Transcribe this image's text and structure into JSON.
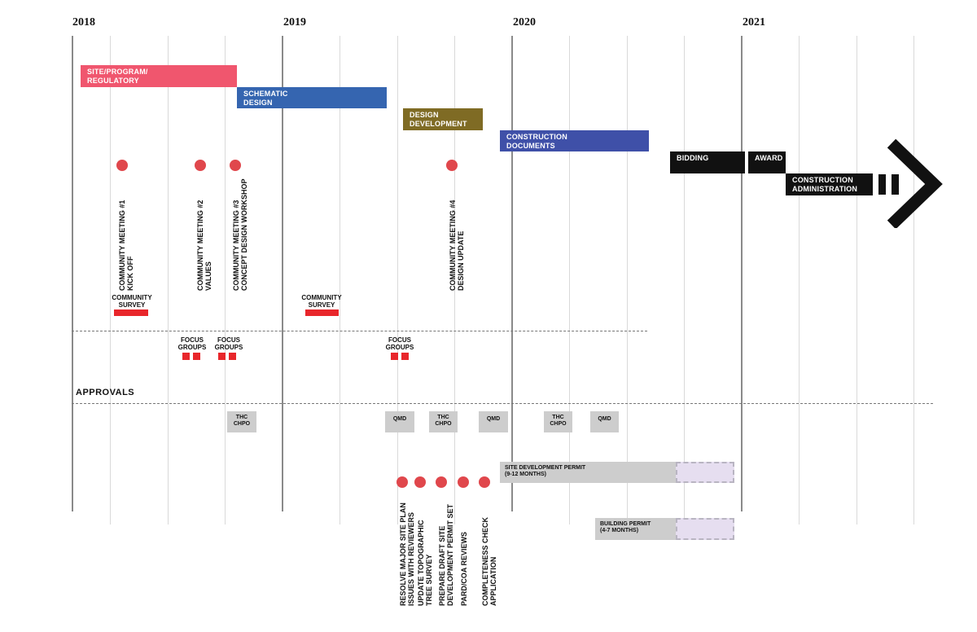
{
  "years": [
    "2018",
    "2019",
    "2020",
    "2021"
  ],
  "phases": {
    "site": "SITE/PROGRAM/\nREGULATORY",
    "schematic": "SCHEMATIC\nDESIGN",
    "dd": "DESIGN\nDEVELOPMENT",
    "cd": "CONSTRUCTION\nDOCUMENTS",
    "bidding": "BIDDING",
    "award": "AWARD",
    "ca": "CONSTRUCTION\nADMINISTRATION"
  },
  "colors": {
    "site": "#f0566e",
    "schematic": "#3565b0",
    "dd": "#7f6b24",
    "cd": "#3f50a8",
    "dark": "#111111",
    "red_dot": "#e0474c",
    "red_bar": "#e8262b",
    "gray_box": "#cdcdcd",
    "permit_ext": "#e6def0"
  },
  "meetings": {
    "m1": "COMMUNITY MEETING #1\nKICK OFF",
    "m2": "COMMUNITY MEETING #2\nVALUES",
    "m3": "COMMUNITY MEETING #3\nCONCEPT DESIGN WORKSHOP",
    "m4": "COMMUNITY MEETING #4\nDESIGN UPDATE"
  },
  "surveys": {
    "s1": "COMMUNITY\nSURVEY",
    "s2": "COMMUNITY\nSURVEY"
  },
  "focus": {
    "f1": "FOCUS\nGROUPS",
    "f2": "FOCUS\nGROUPS",
    "f3": "FOCUS\nGROUPS"
  },
  "approvals_label": "APPROVALS",
  "approval_boxes": {
    "a1": "THC\nCHPO",
    "a2": "QMD",
    "a3": "THC\nCHPO",
    "a4": "QMD",
    "a5": "THC\nCHPO",
    "a6": "QMD"
  },
  "permits": {
    "site_dev": "SITE DEVELOPMENT PERMIT\n(9-12 MONTHS)",
    "building": "BUILDING PERMIT\n(4-7 MONTHS)"
  },
  "milestones": {
    "t1": "RESOLVE MAJOR SITE PLAN\nISSUES WITH REVIEWERS",
    "t2": "UPDATE TOPOGRAPHIC\nTREE SURVEY",
    "t3": "PREPARE DRAFT SITE\nDEVELOPMENT PERMIT SET",
    "t4": "PARD/COA REVIEWS",
    "t5": "COMPLETENESS CHECK\nAPPLICATION"
  }
}
